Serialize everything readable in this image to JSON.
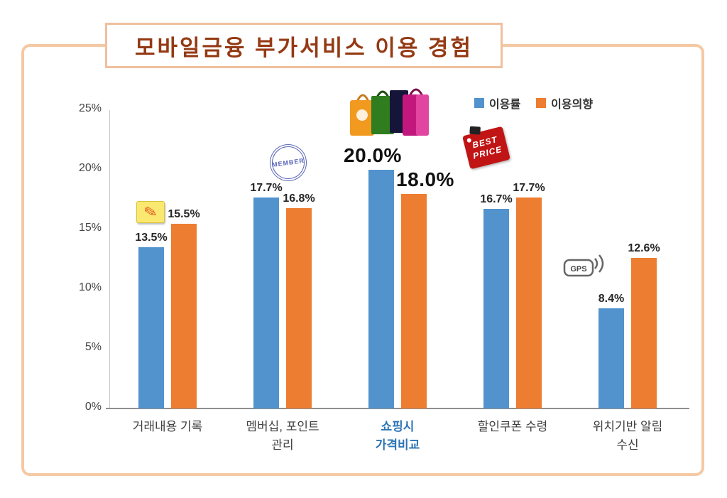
{
  "title": "모바일금융 부가서비스 이용 경험",
  "chart_data": {
    "type": "bar",
    "title": "모바일금융 부가서비스 이용 경험",
    "categories": [
      "거래내용 기록",
      "멤버십, 포인트 관리",
      "쇼핑시 가격비교",
      "할인쿠폰 수령",
      "위치기반 알림 수신"
    ],
    "category_label_lines": [
      [
        "거래내용 기록"
      ],
      [
        "멤버십, 포인트",
        "관리"
      ],
      [
        "쇼핑시",
        "가격비교"
      ],
      [
        "할인쿠폰 수령"
      ],
      [
        "위치기반 알림",
        "수신"
      ]
    ],
    "series": [
      {
        "name": "이용률",
        "color": "#5293CE",
        "values": [
          13.5,
          17.7,
          20.0,
          16.7,
          8.4
        ]
      },
      {
        "name": "이용의향",
        "color": "#ED7D31",
        "values": [
          15.5,
          16.8,
          18.0,
          17.7,
          12.6
        ]
      }
    ],
    "value_labels": [
      [
        "13.5%",
        "17.7%",
        "20.0%",
        "16.7%",
        "8.4%"
      ],
      [
        "15.5%",
        "16.8%",
        "18.0%",
        "17.7%",
        "12.6%"
      ]
    ],
    "ylim": [
      0,
      25
    ],
    "yticks": [
      {
        "label": "0%",
        "value": 0
      },
      {
        "label": "5%",
        "value": 5
      },
      {
        "label": "10%",
        "value": 10
      },
      {
        "label": "15%",
        "value": 15
      },
      {
        "label": "20%",
        "value": 20
      },
      {
        "label": "25%",
        "value": 25
      }
    ],
    "grid": false,
    "legend_position": "top-right",
    "highlight_category_index": 2
  },
  "icons": {
    "note_pencil": "note-pencil-icon",
    "member_text": "MEMBER",
    "shopping_bags": "shopping-bags-icon",
    "best_price_line1": "BEST",
    "best_price_line2": "PRICE",
    "gps_text": "GPS"
  }
}
